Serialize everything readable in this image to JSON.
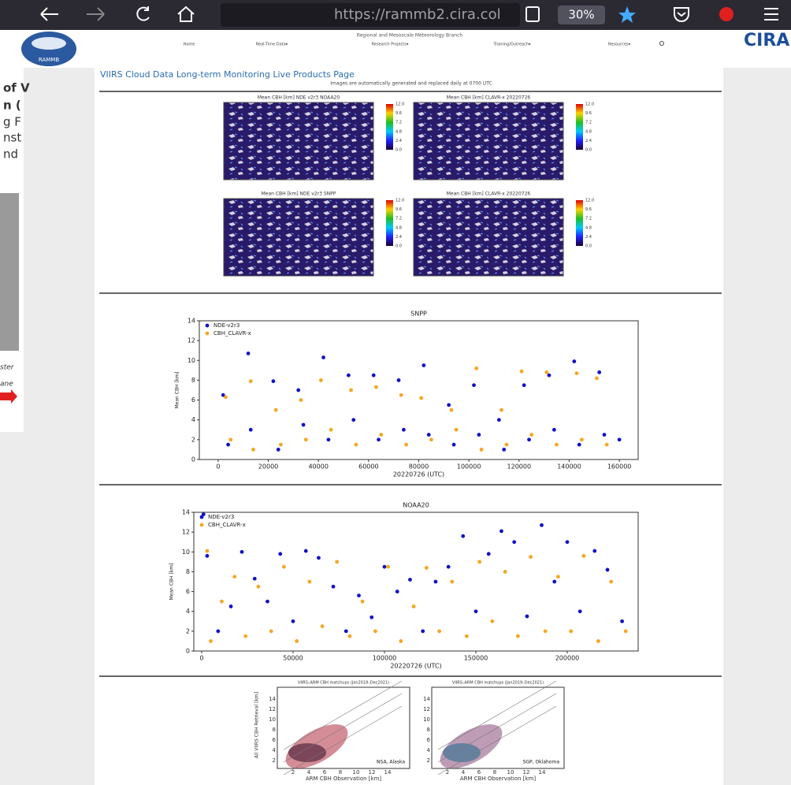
{
  "browser": {
    "url": "https://rammb2.cira.col",
    "zoom": "30%"
  },
  "left_fragments": [
    "of V",
    "n (",
    "g F",
    "nst",
    "nd",
    "ster",
    "ane"
  ],
  "site": {
    "branch": "Regional and Mesoscale Meteorology Branch",
    "logo": "RAMMB",
    "right_logo": "CIRA",
    "nav": [
      "Home",
      "Real-Time Data▾",
      "Research Projects▾",
      "Training/Outreach▾",
      "Resources▾"
    ]
  },
  "page": {
    "heading": "VIIRS Cloud Data Long-term Monitoring Live Products Page",
    "subtitle": "Images are automatically generated and replaced daily at 0700 UTC"
  },
  "maps": {
    "titles": [
      "Mean CBH [km] NDE v2r3 NOAA20",
      "Mean CBH [km] CLAVR-x 20220726",
      "Mean CBH [km] NDE v2r3 SNPP",
      "Mean CBH [km] CLAVR-x 20220726"
    ],
    "colorbar_labels": [
      "12.0",
      "9.6",
      "7.2",
      "4.8",
      "2.4",
      "0.0"
    ]
  },
  "chart_data": [
    {
      "type": "scatter",
      "title": "SNPP",
      "x_label": "20220726 (UTC)",
      "y_label": "Mean CBH [km]",
      "xlim": [
        -7500,
        167500
      ],
      "ylim": [
        0,
        14
      ],
      "xticks": [
        0,
        20000,
        40000,
        60000,
        80000,
        100000,
        120000,
        140000,
        160000
      ],
      "yticks": [
        0,
        2,
        4,
        6,
        8,
        10,
        12,
        14
      ],
      "legend": "upper left",
      "series": [
        {
          "name": "NDE-v2r3",
          "color": "#1010c8",
          "x": [
            2000,
            4000,
            12000,
            13000,
            22000,
            24000,
            32000,
            34000,
            42000,
            44000,
            52000,
            54000,
            62000,
            64000,
            72000,
            74000,
            82000,
            84000,
            92000,
            94000,
            102000,
            104000,
            112000,
            114000,
            122000,
            124000,
            132000,
            134000,
            142000,
            144000,
            152000,
            154000,
            160000
          ],
          "values": [
            6.5,
            1.5,
            10.7,
            3,
            7.9,
            1,
            7,
            3.5,
            10.3,
            2,
            8.5,
            4,
            8.5,
            2,
            8,
            3,
            9.5,
            2.5,
            5.5,
            1.5,
            7.5,
            2.5,
            4,
            1,
            7.5,
            2,
            8.5,
            3,
            9.9,
            1.5,
            8.8,
            2.5,
            2
          ]
        },
        {
          "name": "CBH_CLAVR-x",
          "color": "#f5a623",
          "x": [
            3000,
            5000,
            13000,
            14000,
            23000,
            25000,
            33000,
            35000,
            41000,
            45000,
            53000,
            55000,
            63000,
            65000,
            73000,
            75000,
            81000,
            85000,
            93000,
            95000,
            103000,
            105000,
            113000,
            115000,
            121000,
            125000,
            131000,
            135000,
            143000,
            145000,
            151000,
            155000
          ],
          "values": [
            6.3,
            2,
            7.9,
            1,
            5,
            1.5,
            6,
            2,
            8,
            3,
            7,
            1.5,
            7.3,
            2.5,
            6.5,
            1.5,
            6.2,
            2,
            5,
            3,
            9.2,
            1,
            5,
            1.5,
            8.9,
            2.5,
            8.8,
            1.5,
            8.7,
            2,
            8.2,
            1.5
          ]
        }
      ]
    },
    {
      "type": "scatter",
      "title": "NOAA20",
      "x_label": "20220726 (UTC)",
      "y_label": "Mean CBH [km]",
      "xlim": [
        -4300,
        238800
      ],
      "ylim": [
        0,
        14
      ],
      "xticks": [
        0,
        50000,
        100000,
        150000,
        200000
      ],
      "yticks": [
        0,
        2,
        4,
        6,
        8,
        10,
        12,
        14
      ],
      "legend": "upper left",
      "series": [
        {
          "name": "NDE-v2r3",
          "color": "#1010c8",
          "x": [
            1000,
            3000,
            9000,
            16000,
            22000,
            29000,
            36000,
            43000,
            50000,
            57000,
            64000,
            72000,
            79000,
            86000,
            93000,
            100000,
            107000,
            114000,
            121000,
            128000,
            135000,
            143000,
            150000,
            157000,
            164000,
            171000,
            178000,
            186000,
            193000,
            200000,
            207000,
            215000,
            222000,
            230000
          ],
          "values": [
            13.8,
            9.6,
            2,
            4.5,
            10,
            7.3,
            5,
            9.8,
            3,
            10.1,
            9.4,
            6.5,
            2,
            5.6,
            3.4,
            8.5,
            6,
            7.2,
            2,
            7,
            8.5,
            11.6,
            4,
            9.8,
            12.1,
            11,
            3.5,
            12.7,
            7,
            11,
            4,
            10.1,
            8.2,
            3
          ]
        },
        {
          "name": "CBH_CLAVR-x",
          "color": "#f5a623",
          "x": [
            3000,
            5000,
            11000,
            18000,
            24000,
            31000,
            38000,
            45000,
            52000,
            59000,
            66000,
            74000,
            81000,
            88000,
            95000,
            102000,
            109000,
            116000,
            123000,
            130000,
            137000,
            145000,
            152000,
            159000,
            166000,
            173000,
            180000,
            188000,
            195000,
            202000,
            209000,
            217000,
            224000,
            232000
          ],
          "values": [
            10.1,
            1,
            5,
            7.5,
            1.5,
            6.5,
            2,
            8.5,
            1,
            7,
            2.5,
            9,
            1.5,
            5,
            2,
            8.5,
            1,
            4.5,
            8.4,
            2,
            7,
            1.5,
            9,
            3,
            8,
            1.5,
            9.5,
            2,
            7.5,
            2,
            9.6,
            1,
            7,
            2
          ]
        }
      ]
    }
  ],
  "validation": {
    "titles": [
      "VIIRS–ARM CBH matchups (Jan2019–Dec2021)",
      "VIIRS–ARM CBH matchups (Jan2019–Dec2021)"
    ],
    "y_label": "All VIIRS CBH Retrieval [km]",
    "x_label": "ARM CBH Observation [km]",
    "sites": [
      "NSA, Alaska",
      "SGP, Oklahoma"
    ],
    "ticks": [
      "2",
      "4",
      "6",
      "8",
      "10",
      "12",
      "14"
    ]
  }
}
